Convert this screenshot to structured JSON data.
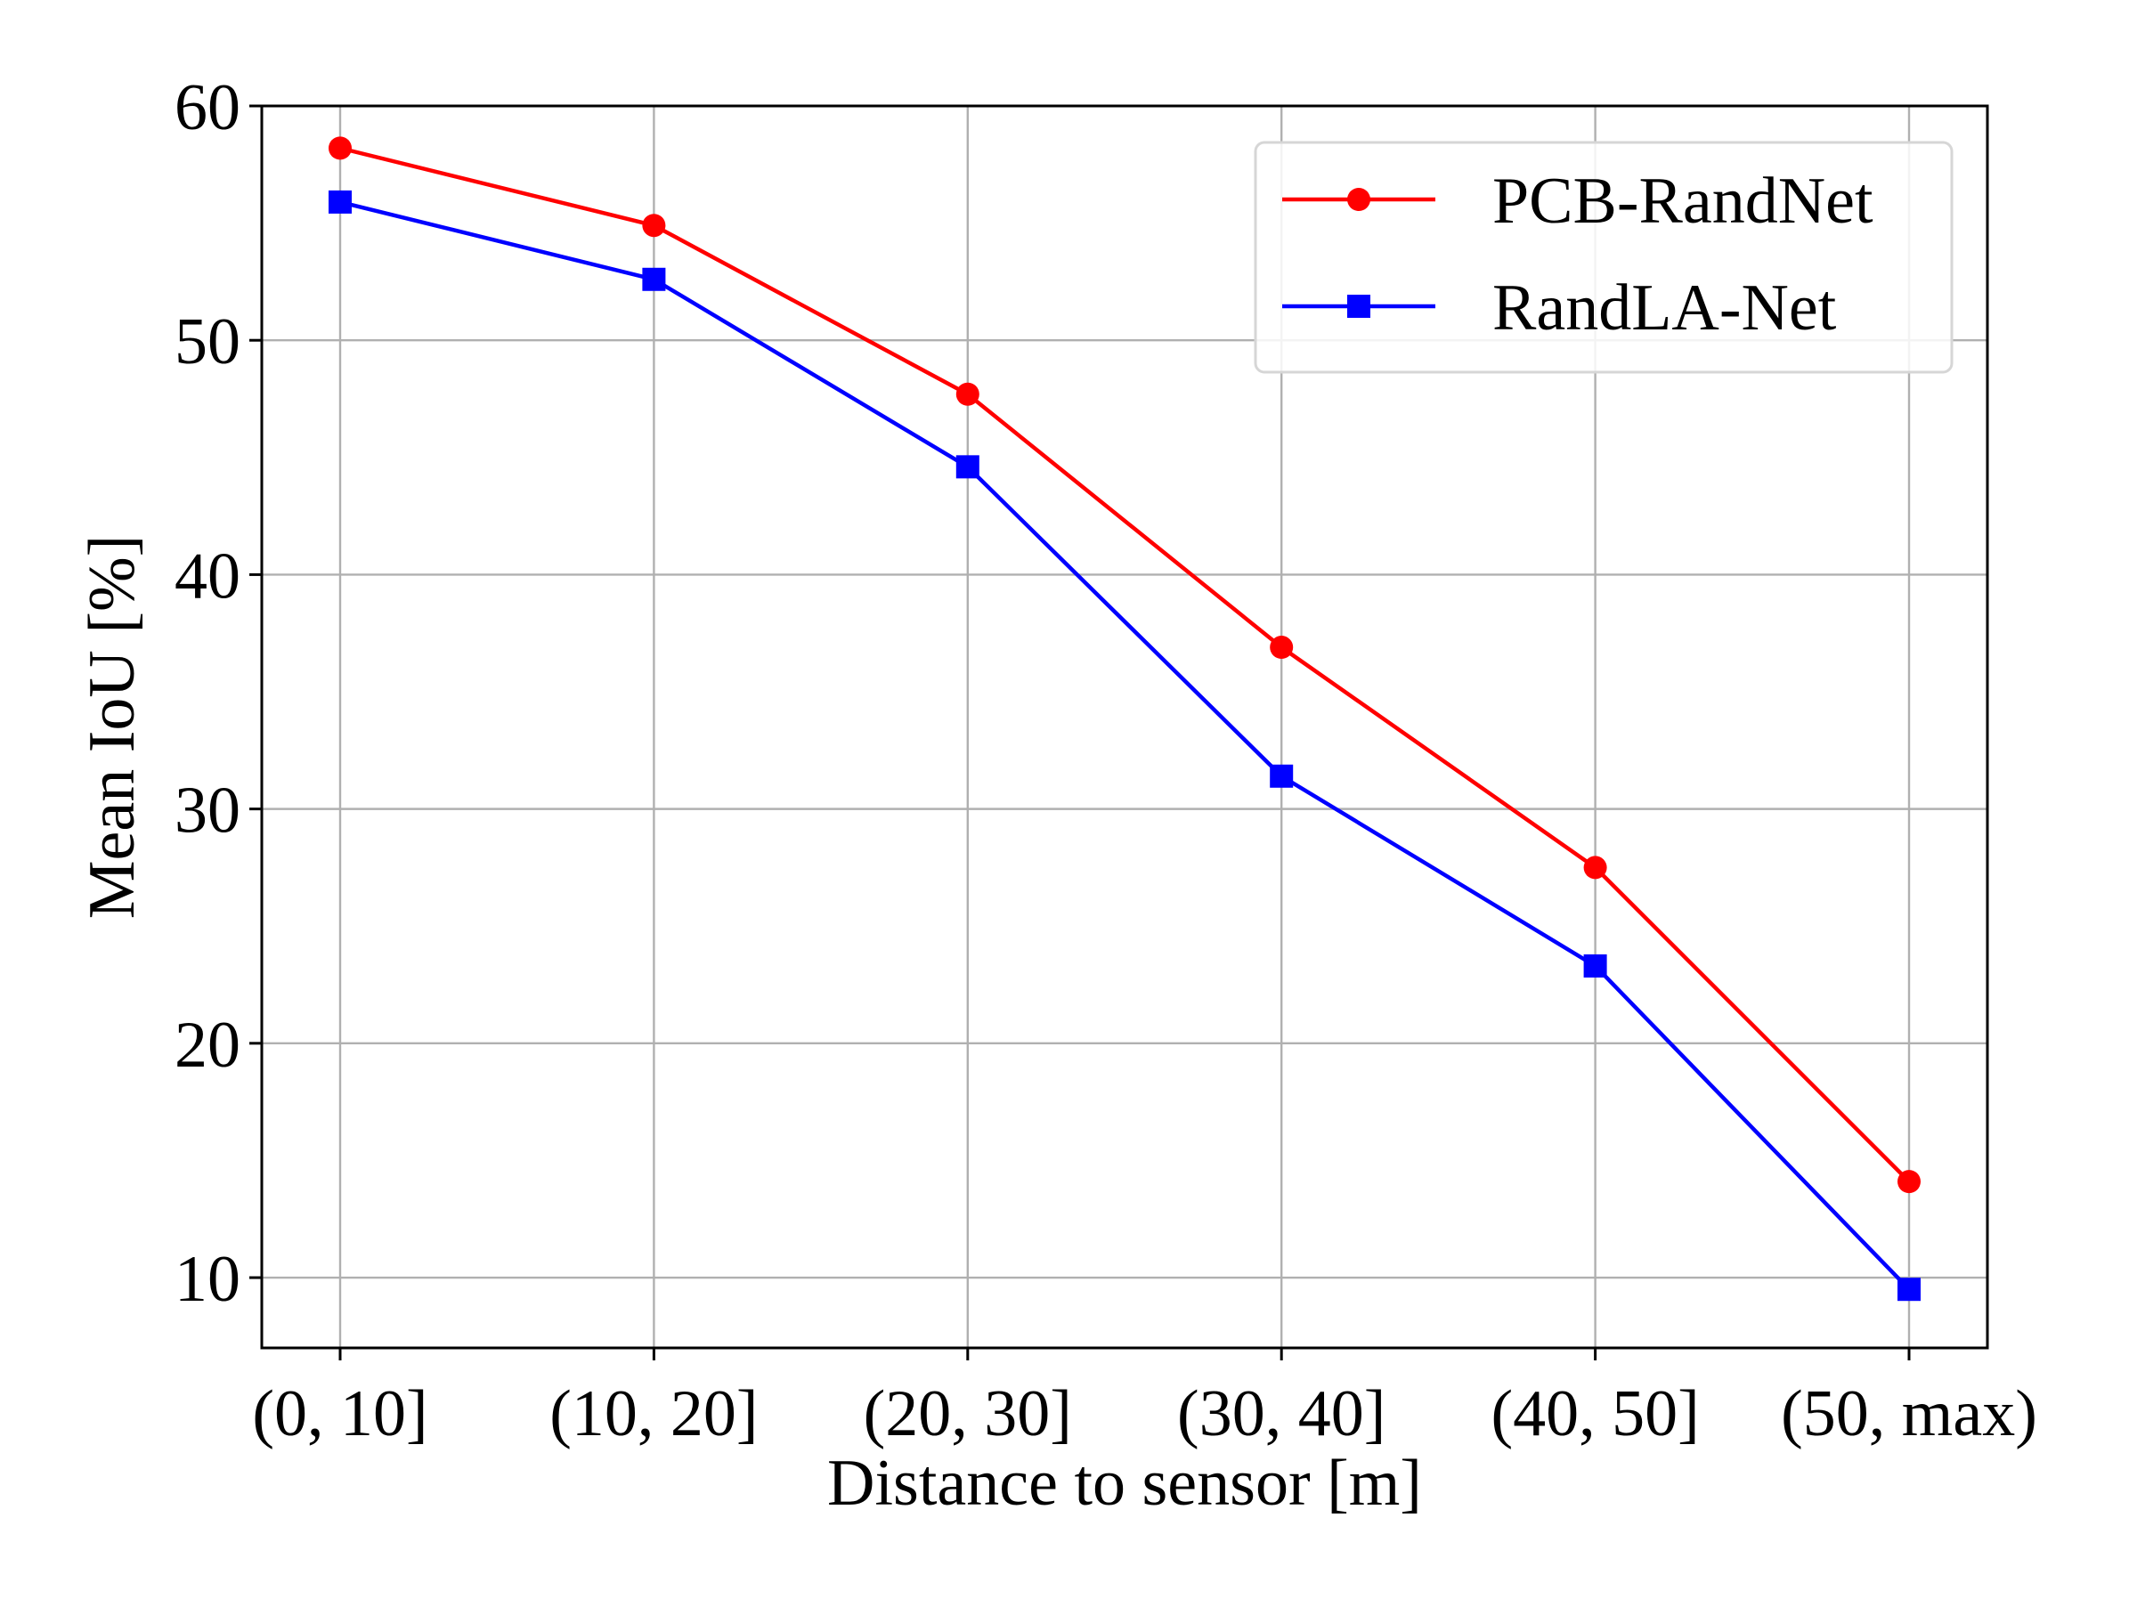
{
  "chart_data": {
    "type": "line",
    "title": "",
    "xlabel": "Distance to sensor [m]",
    "ylabel": "Mean IoU [%]",
    "categories": [
      "(0, 10]",
      "(10, 20]",
      "(20, 30]",
      "(30, 40]",
      "(40, 50]",
      "(50, max)"
    ],
    "ylim": [
      7,
      60
    ],
    "yticks": [
      10,
      20,
      30,
      40,
      50,
      60
    ],
    "grid": true,
    "legend_position": "top-right",
    "series": [
      {
        "name": "PCB-RandNet",
        "color": "#ff0000",
        "marker": "circle",
        "values": [
          58.2,
          54.9,
          47.7,
          36.9,
          27.5,
          14.1
        ]
      },
      {
        "name": "RandLA-Net",
        "color": "#0000ff",
        "marker": "square",
        "values": [
          55.9,
          52.6,
          44.6,
          31.4,
          23.3,
          9.5
        ]
      }
    ]
  }
}
